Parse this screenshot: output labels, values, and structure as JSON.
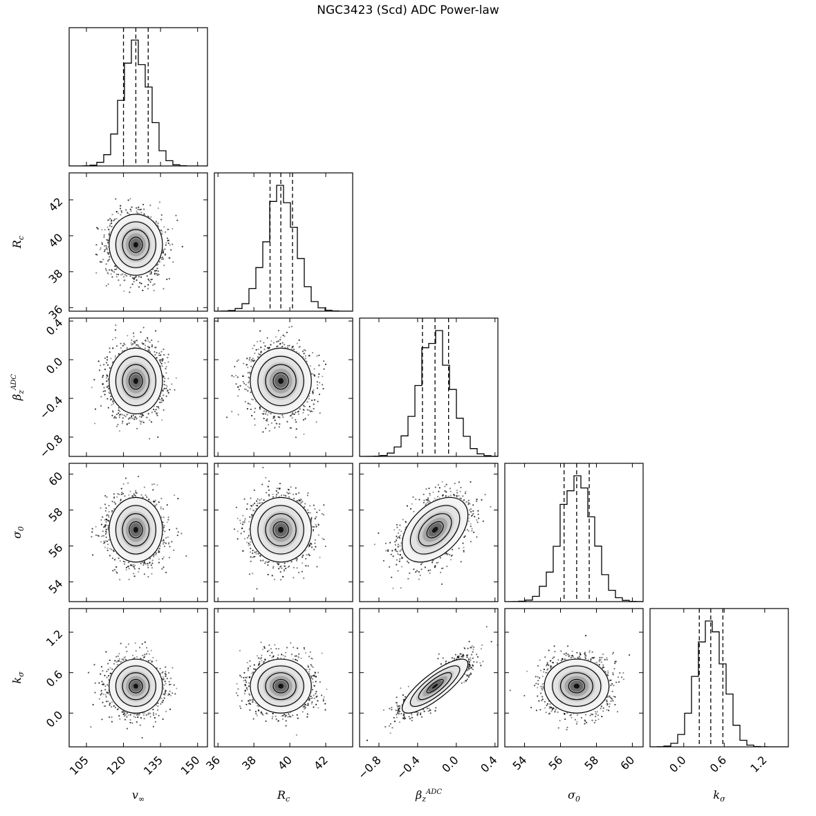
{
  "chart_data": {
    "type": "corner",
    "title": "NGC3423 (Scd) ADC Power-law",
    "params": [
      {
        "id": "vinf",
        "label_base": "v",
        "label_sub": "∞",
        "label_sup": "",
        "ticks": [
          105,
          120,
          135,
          150
        ],
        "range": [
          98,
          154
        ],
        "median": 125,
        "q16": 120,
        "q84": 130,
        "sigma": 5.4
      },
      {
        "id": "rc",
        "label_base": "R",
        "label_sub": "c",
        "label_sup": "",
        "ticks": [
          36,
          38,
          40,
          42
        ],
        "range": [
          35.8,
          43.5
        ],
        "median": 39.5,
        "q16": 38.9,
        "q84": 40.15,
        "sigma": 0.85
      },
      {
        "id": "beta",
        "label_base": "β",
        "label_sub": "z",
        "label_sup": "ADC",
        "ticks": [
          -0.8,
          -0.4,
          0.0,
          0.4
        ],
        "range": [
          -1.0,
          0.43
        ],
        "median": -0.22,
        "q16": -0.35,
        "q84": -0.08,
        "sigma": 0.17
      },
      {
        "id": "sigma0",
        "label_base": "σ",
        "label_sub": "0",
        "label_sup": "",
        "ticks": [
          54,
          56,
          58,
          60
        ],
        "range": [
          52.9,
          60.6
        ],
        "median": 56.9,
        "q16": 56.2,
        "q84": 57.6,
        "sigma": 0.9
      },
      {
        "id": "ksigma",
        "label_base": "k",
        "label_sub": "σ",
        "label_sup": "",
        "ticks": [
          0.0,
          0.6,
          1.2
        ],
        "range": [
          -0.5,
          1.55
        ],
        "median": 0.4,
        "q16": 0.23,
        "q84": 0.58,
        "sigma": 0.2
      }
    ],
    "correlations": [
      {
        "pair": [
          "beta",
          "sigma0"
        ],
        "rho": 0.45
      },
      {
        "pair": [
          "beta",
          "ksigma"
        ],
        "rho": 0.82
      }
    ],
    "histogram_bins": 20,
    "scatter_points_per_panel": 1800,
    "contour_levels_sigma": [
      0.5,
      1.0,
      1.5,
      2.0
    ]
  }
}
